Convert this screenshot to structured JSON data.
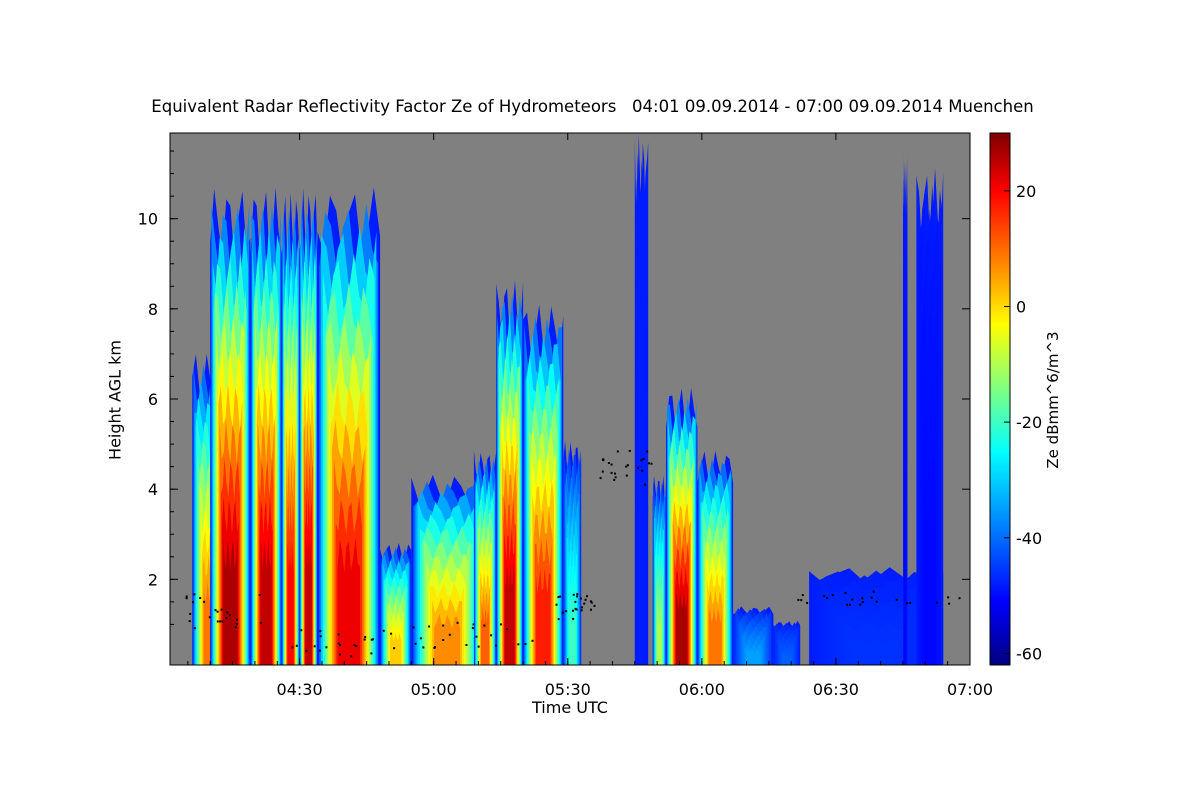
{
  "chart_data": {
    "type": "heatmap",
    "title": "Equivalent Radar Reflectivity Factor Ze of Hydrometeors   04:01 09.09.2014 - 07:00 09.09.2014 Muenchen",
    "xlabel": "Time UTC",
    "ylabel": "Height AGL km",
    "colorbar_label": "Ze dBmm^6/m^3",
    "x_range_minutes": [
      241,
      420
    ],
    "y_range_km": [
      0.1,
      11.9
    ],
    "x_ticks": [
      {
        "minute": 270,
        "label": "04:30"
      },
      {
        "minute": 300,
        "label": "05:00"
      },
      {
        "minute": 330,
        "label": "05:30"
      },
      {
        "minute": 360,
        "label": "06:00"
      },
      {
        "minute": 390,
        "label": "06:30"
      },
      {
        "minute": 420,
        "label": "07:00"
      }
    ],
    "y_ticks": [
      {
        "value": 2,
        "label": "2"
      },
      {
        "value": 4,
        "label": "4"
      },
      {
        "value": 6,
        "label": "6"
      },
      {
        "value": 8,
        "label": "8"
      },
      {
        "value": 10,
        "label": "10"
      }
    ],
    "colorbar_range": [
      -62,
      30
    ],
    "colorbar_ticks": [
      {
        "value": 20,
        "label": "20"
      },
      {
        "value": 0,
        "label": "0"
      },
      {
        "value": -20,
        "label": "-20"
      },
      {
        "value": -40,
        "label": "-40"
      },
      {
        "value": -60,
        "label": "-60"
      }
    ],
    "colormap": [
      "#000080",
      "#0000ff",
      "#0080ff",
      "#00ffff",
      "#80ff80",
      "#ffff00",
      "#ff8000",
      "#ff0000",
      "#800000"
    ],
    "no_data_color": "#808080",
    "cells": [
      {
        "t0": 246,
        "t1": 254,
        "top": 6.5,
        "peak": 8
      },
      {
        "t0": 250,
        "t1": 259,
        "top": 9.9,
        "peak": 26
      },
      {
        "t0": 259,
        "t1": 266,
        "top": 9.9,
        "peak": 24
      },
      {
        "t0": 266,
        "t1": 270,
        "top": 9.8,
        "peak": 18
      },
      {
        "t0": 270,
        "t1": 274,
        "top": 9.9,
        "peak": 24
      },
      {
        "t0": 274,
        "t1": 288,
        "top": 9.9,
        "peak": 20
      },
      {
        "t0": 288,
        "t1": 295,
        "top": 2.6,
        "peak": 0
      },
      {
        "t0": 295,
        "t1": 311,
        "top": 4.0,
        "peak": 6
      },
      {
        "t0": 309,
        "t1": 314,
        "top": 4.5,
        "peak": 10
      },
      {
        "t0": 314,
        "t1": 320,
        "top": 8.0,
        "peak": 24
      },
      {
        "t0": 320,
        "t1": 329,
        "top": 7.5,
        "peak": 16
      },
      {
        "t0": 329,
        "t1": 333,
        "top": 4.7,
        "peak": -22
      },
      {
        "t0": 349,
        "t1": 352,
        "top": 4.0,
        "peak": -12
      },
      {
        "t0": 352,
        "t1": 359,
        "top": 5.8,
        "peak": 26
      },
      {
        "t0": 359,
        "t1": 367,
        "top": 4.5,
        "peak": 8
      },
      {
        "t0": 367,
        "t1": 376,
        "top": 1.3,
        "peak": -36
      },
      {
        "t0": 376,
        "t1": 382,
        "top": 1.0,
        "peak": -42
      },
      {
        "t0": 384,
        "t1": 414,
        "top": 2.1,
        "peak": -46
      },
      {
        "t0": 345,
        "t1": 348,
        "top": 11.0,
        "peak": -48
      },
      {
        "t0": 405,
        "t1": 406,
        "top": 10.6,
        "peak": -50
      },
      {
        "t0": 408,
        "t1": 414,
        "top": 10.3,
        "peak": -50
      }
    ]
  }
}
